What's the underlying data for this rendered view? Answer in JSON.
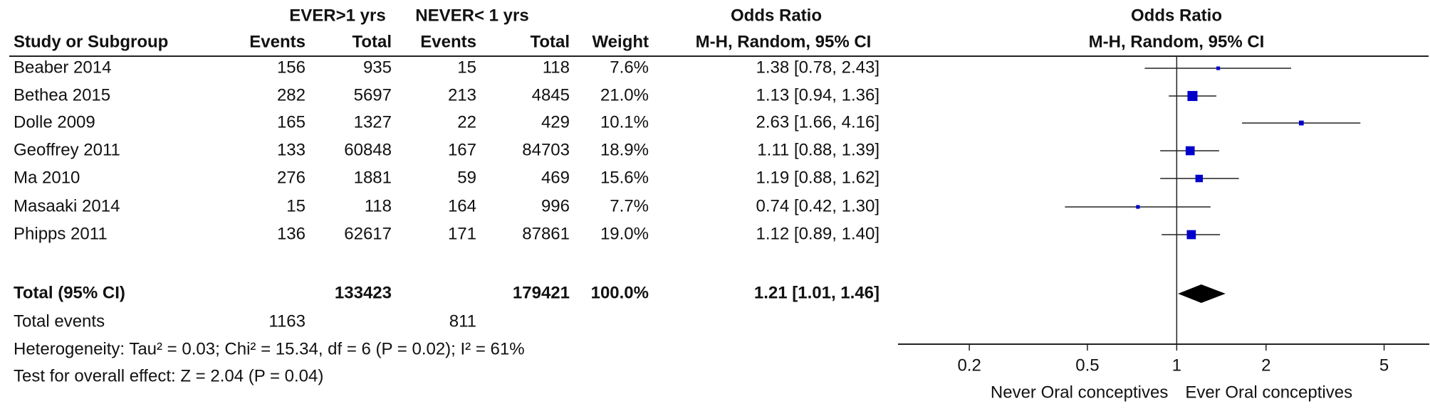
{
  "chart_data": {
    "type": "forest",
    "group_headers": [
      "EVER>1 yrs",
      "NEVER< 1 yrs",
      "Odds Ratio",
      "Odds Ratio"
    ],
    "method_headers": [
      "M-H, Random, 95% CI",
      "M-H, Random, 95% CI"
    ],
    "columns": [
      "Study or Subgroup",
      "Events",
      "Total",
      "Events",
      "Total",
      "Weight"
    ],
    "studies": [
      {
        "name": "Beaber 2014",
        "ever_events": 156,
        "ever_total": 935,
        "never_events": 15,
        "never_total": 118,
        "weight": 7.6,
        "weight_label": "7.6%",
        "or": 1.38,
        "ci": [
          0.78,
          2.43
        ],
        "or_label": "1.38 [0.78, 2.43]"
      },
      {
        "name": "Bethea 2015",
        "ever_events": 282,
        "ever_total": 5697,
        "never_events": 213,
        "never_total": 4845,
        "weight": 21.0,
        "weight_label": "21.0%",
        "or": 1.13,
        "ci": [
          0.94,
          1.36
        ],
        "or_label": "1.13 [0.94, 1.36]"
      },
      {
        "name": "Dolle 2009",
        "ever_events": 165,
        "ever_total": 1327,
        "never_events": 22,
        "never_total": 429,
        "weight": 10.1,
        "weight_label": "10.1%",
        "or": 2.63,
        "ci": [
          1.66,
          4.16
        ],
        "or_label": "2.63 [1.66, 4.16]"
      },
      {
        "name": "Geoffrey 2011",
        "ever_events": 133,
        "ever_total": 60848,
        "never_events": 167,
        "never_total": 84703,
        "weight": 18.9,
        "weight_label": "18.9%",
        "or": 1.11,
        "ci": [
          0.88,
          1.39
        ],
        "or_label": "1.11 [0.88, 1.39]"
      },
      {
        "name": "Ma 2010",
        "ever_events": 276,
        "ever_total": 1881,
        "never_events": 59,
        "never_total": 469,
        "weight": 15.6,
        "weight_label": "15.6%",
        "or": 1.19,
        "ci": [
          0.88,
          1.62
        ],
        "or_label": "1.19 [0.88, 1.62]"
      },
      {
        "name": "Masaaki 2014",
        "ever_events": 15,
        "ever_total": 118,
        "never_events": 164,
        "never_total": 996,
        "weight": 7.7,
        "weight_label": "7.7%",
        "or": 0.74,
        "ci": [
          0.42,
          1.3
        ],
        "or_label": "0.74 [0.42, 1.30]"
      },
      {
        "name": "Phipps 2011",
        "ever_events": 136,
        "ever_total": 62617,
        "never_events": 171,
        "never_total": 87861,
        "weight": 19.0,
        "weight_label": "19.0%",
        "or": 1.12,
        "ci": [
          0.89,
          1.4
        ],
        "or_label": "1.12 [0.89, 1.40]"
      }
    ],
    "total": {
      "name": "Total (95% CI)",
      "ever_total": 133423,
      "never_total": 179421,
      "weight_label": "100.0%",
      "or": 1.21,
      "ci": [
        1.01,
        1.46
      ],
      "or_label": "1.21 [1.01, 1.46]"
    },
    "total_events": {
      "name": "Total events",
      "ever": 1163,
      "never": 811
    },
    "heterogeneity": "Heterogeneity: Tau² = 0.03; Chi² = 15.34, df = 6 (P = 0.02); I² = 61%",
    "overall_effect": "Test for overall effect: Z = 2.04 (P = 0.04)",
    "xscale": "log",
    "xlim": [
      0.115,
      7.1
    ],
    "xticks": [
      0.2,
      0.5,
      1,
      2,
      5
    ],
    "xlabels": [
      "Never Oral conceptives",
      "Ever Oral conceptives"
    ],
    "marker_color": "#0000cc"
  }
}
